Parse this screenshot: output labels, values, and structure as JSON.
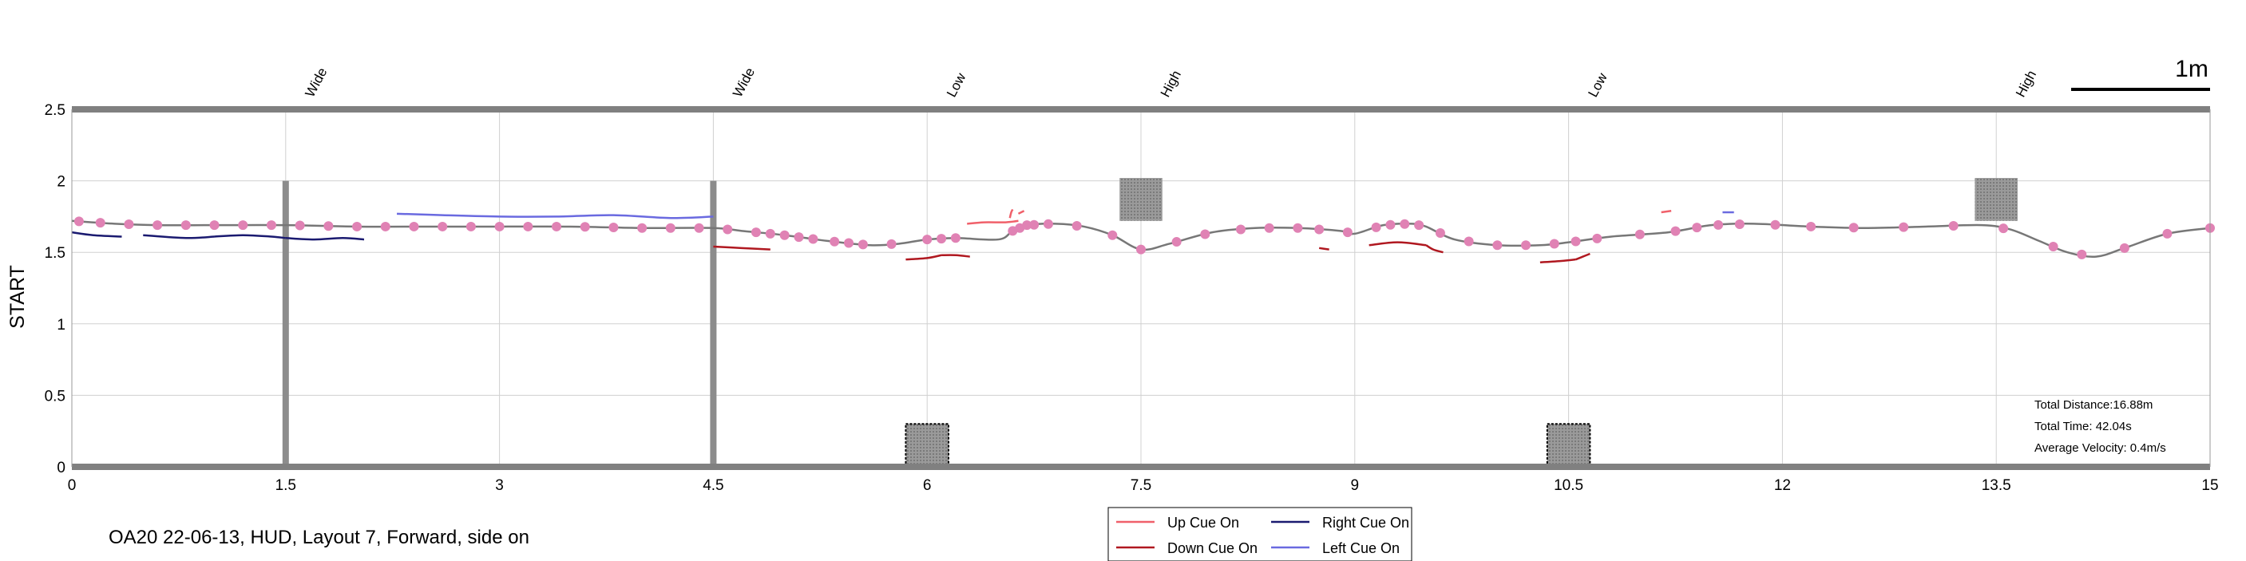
{
  "caption": "OA20 22-06-13, HUD, Layout 7, Forward, side on",
  "scale_bar_label": "1m",
  "stats": {
    "distance": "Total Distance:16.88m",
    "time": "Total Time: 42.04s",
    "velocity": "Average Velocity: 0.4m/s"
  },
  "colors": {
    "path": "#777777",
    "marker": "#e082b4",
    "up_cue": "#f0606a",
    "down_cue": "#b01820",
    "right_cue": "#1a1a70",
    "left_cue": "#6a6ae0",
    "obstacle": "#8c8c8c",
    "frame": "#808080"
  },
  "chart_data": {
    "type": "line",
    "ylabel": "START",
    "xlabel": "",
    "xlim": [
      0,
      15
    ],
    "ylim": [
      0,
      2.5
    ],
    "x_ticks": [
      "0",
      "1.5",
      "3",
      "4.5",
      "6",
      "7.5",
      "9",
      "10.5",
      "12",
      "13.5",
      "15"
    ],
    "y_ticks": [
      "0",
      "0.5",
      "1",
      "1.5",
      "2",
      "2.5"
    ],
    "grid": true,
    "obstacle_labels": [
      {
        "x": 1.5,
        "text": "Wide"
      },
      {
        "x": 4.5,
        "text": "Wide"
      },
      {
        "x": 6.0,
        "text": "Low"
      },
      {
        "x": 7.5,
        "text": "High"
      },
      {
        "x": 10.5,
        "text": "Low"
      },
      {
        "x": 13.5,
        "text": "High"
      }
    ],
    "obstacles": [
      {
        "type": "wide",
        "x": 1.5,
        "y": [
          0,
          2.0
        ]
      },
      {
        "type": "wide",
        "x": 4.5,
        "y": [
          0,
          2.0
        ]
      },
      {
        "type": "low",
        "x": [
          5.85,
          6.15
        ],
        "y": [
          0,
          0.3
        ]
      },
      {
        "type": "high",
        "x": [
          7.35,
          7.65
        ],
        "y": [
          1.72,
          2.02
        ]
      },
      {
        "type": "low",
        "x": [
          10.35,
          10.65
        ],
        "y": [
          0,
          0.3
        ]
      },
      {
        "type": "high",
        "x": [
          13.35,
          13.65
        ],
        "y": [
          1.72,
          2.02
        ]
      }
    ],
    "path": {
      "name": "",
      "x": [
        0,
        0.3,
        0.6,
        1.0,
        1.5,
        2.0,
        2.5,
        3.0,
        3.5,
        4.0,
        4.5,
        4.7,
        5.0,
        5.3,
        5.6,
        5.8,
        6.0,
        6.2,
        6.5,
        6.6,
        6.7,
        6.9,
        7.1,
        7.3,
        7.5,
        7.7,
        8.0,
        8.3,
        8.6,
        8.9,
        9.0,
        9.2,
        9.4,
        9.5,
        9.7,
        10.0,
        10.3,
        10.5,
        10.8,
        11.2,
        11.5,
        11.8,
        12.2,
        12.6,
        13.0,
        13.4,
        13.6,
        13.8,
        14.0,
        14.2,
        14.4,
        14.7,
        15.0
      ],
      "y": [
        1.72,
        1.7,
        1.69,
        1.69,
        1.69,
        1.68,
        1.68,
        1.68,
        1.68,
        1.67,
        1.67,
        1.65,
        1.62,
        1.58,
        1.55,
        1.56,
        1.59,
        1.6,
        1.59,
        1.65,
        1.69,
        1.7,
        1.68,
        1.62,
        1.52,
        1.56,
        1.64,
        1.67,
        1.67,
        1.65,
        1.63,
        1.69,
        1.7,
        1.68,
        1.59,
        1.55,
        1.55,
        1.57,
        1.61,
        1.64,
        1.69,
        1.7,
        1.68,
        1.67,
        1.68,
        1.69,
        1.66,
        1.58,
        1.5,
        1.47,
        1.53,
        1.63,
        1.67
      ]
    },
    "markers_x": [
      0.05,
      0.2,
      0.4,
      0.6,
      0.8,
      1.0,
      1.2,
      1.4,
      1.6,
      1.8,
      2.0,
      2.2,
      2.4,
      2.6,
      2.8,
      3.0,
      3.2,
      3.4,
      3.6,
      3.8,
      4.0,
      4.2,
      4.4,
      4.6,
      4.8,
      4.9,
      5.0,
      5.1,
      5.2,
      5.35,
      5.45,
      5.55,
      5.75,
      6.0,
      6.1,
      6.2,
      6.6,
      6.65,
      6.7,
      6.75,
      6.85,
      7.05,
      7.3,
      7.5,
      7.75,
      7.95,
      8.2,
      8.4,
      8.6,
      8.75,
      8.95,
      9.15,
      9.25,
      9.35,
      9.45,
      9.6,
      9.8,
      10.0,
      10.2,
      10.4,
      10.55,
      10.7,
      11.0,
      11.25,
      11.4,
      11.55,
      11.7,
      11.95,
      12.2,
      12.5,
      12.85,
      13.2,
      13.55,
      13.9,
      14.1,
      14.4,
      14.7,
      15.0
    ],
    "cues": {
      "up": [
        {
          "x": [
            6.28,
            6.4,
            6.55,
            6.64
          ],
          "y": [
            1.7,
            1.71,
            1.71,
            1.72
          ]
        },
        {
          "x": [
            6.58,
            6.59,
            6.6
          ],
          "y": [
            1.74,
            1.78,
            1.8
          ]
        },
        {
          "x": [
            6.64,
            6.68
          ],
          "y": [
            1.77,
            1.79
          ]
        },
        {
          "x": [
            11.15,
            11.22
          ],
          "y": [
            1.78,
            1.79
          ]
        }
      ],
      "down": [
        {
          "x": [
            4.5,
            4.7,
            4.9
          ],
          "y": [
            1.54,
            1.53,
            1.52
          ]
        },
        {
          "x": [
            5.85,
            6.0,
            6.1
          ],
          "y": [
            1.45,
            1.46,
            1.48
          ]
        },
        {
          "x": [
            6.1,
            6.2,
            6.3
          ],
          "y": [
            1.48,
            1.48,
            1.47
          ]
        },
        {
          "x": [
            8.75,
            8.82
          ],
          "y": [
            1.53,
            1.52
          ]
        },
        {
          "x": [
            9.1,
            9.3,
            9.5
          ],
          "y": [
            1.55,
            1.57,
            1.55
          ]
        },
        {
          "x": [
            9.5,
            9.55,
            9.62
          ],
          "y": [
            1.55,
            1.52,
            1.5
          ]
        },
        {
          "x": [
            10.3,
            10.45,
            10.55
          ],
          "y": [
            1.43,
            1.44,
            1.45
          ]
        },
        {
          "x": [
            10.55,
            10.6,
            10.65
          ],
          "y": [
            1.45,
            1.47,
            1.49
          ]
        }
      ],
      "right": [
        {
          "x": [
            0,
            0.15,
            0.35
          ],
          "y": [
            1.64,
            1.62,
            1.61
          ]
        },
        {
          "x": [
            0.5,
            0.8,
            1.0
          ],
          "y": [
            1.62,
            1.6,
            1.61
          ]
        },
        {
          "x": [
            1.0,
            1.2,
            1.4,
            1.5
          ],
          "y": [
            1.61,
            1.62,
            1.61,
            1.6
          ]
        },
        {
          "x": [
            1.5,
            1.7,
            1.9,
            2.05
          ],
          "y": [
            1.6,
            1.59,
            1.6,
            1.59
          ]
        }
      ],
      "left": [
        {
          "x": [
            2.28,
            2.6,
            3.0,
            3.4,
            3.8,
            4.2,
            4.5
          ],
          "y": [
            1.77,
            1.76,
            1.75,
            1.75,
            1.76,
            1.74,
            1.75
          ]
        },
        {
          "x": [
            11.58,
            11.66
          ],
          "y": [
            1.78,
            1.78
          ]
        }
      ]
    },
    "legend": [
      {
        "key": "up",
        "label": "Up Cue On"
      },
      {
        "key": "right",
        "label": "Right Cue On"
      },
      {
        "key": "down",
        "label": "Down Cue On"
      },
      {
        "key": "left",
        "label": "Left Cue On"
      }
    ]
  }
}
